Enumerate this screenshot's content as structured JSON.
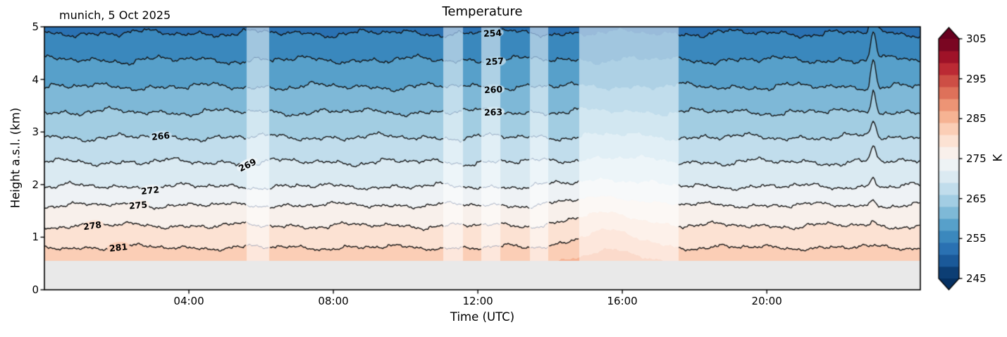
{
  "figure": {
    "title": "Temperature",
    "annotation": "munich, 5 Oct 2025",
    "xlabel": "Time (UTC)",
    "ylabel": "Height a.s.l. (km)"
  },
  "colorbar": {
    "label": "K",
    "ticks": [
      245,
      255,
      265,
      275,
      285,
      295,
      305
    ],
    "vmin": 245,
    "vmax": 305,
    "band_step_K": 3,
    "extend": "both",
    "colormap": "RdBu_r"
  },
  "chart_data": {
    "type": "heatmap",
    "subtype": "filled-contour-time-height-section",
    "title": "Temperature",
    "station_label": "munich, 5 Oct 2025",
    "xlabel": "Time (UTC)",
    "ylabel": "Height a.s.l. (km)",
    "x_range_hours": [
      0,
      24.25
    ],
    "x_ticks": [
      {
        "hour": 4,
        "label": "04:00"
      },
      {
        "hour": 8,
        "label": "08:00"
      },
      {
        "hour": 12,
        "label": "12:00"
      },
      {
        "hour": 16,
        "label": "16:00"
      },
      {
        "hour": 20,
        "label": "20:00"
      }
    ],
    "y_range_km": [
      0,
      5
    ],
    "y_ticks_km": [
      0,
      1,
      2,
      3,
      4,
      5
    ],
    "surface_height_km": 0.55,
    "contour_interval_K": 3,
    "contour_line_levels_K": [
      254,
      257,
      260,
      263,
      266,
      269,
      272,
      275,
      278,
      281
    ],
    "temperature_profile": [
      {
        "z_km": 0.55,
        "T_K": 283.4
      },
      {
        "z_km": 0.8,
        "T_K": 281.0
      },
      {
        "z_km": 1.22,
        "T_K": 278.0
      },
      {
        "z_km": 1.61,
        "T_K": 275.0
      },
      {
        "z_km": 1.96,
        "T_K": 272.0
      },
      {
        "z_km": 2.43,
        "T_K": 269.0
      },
      {
        "z_km": 2.9,
        "T_K": 266.0
      },
      {
        "z_km": 3.38,
        "T_K": 263.0
      },
      {
        "z_km": 3.86,
        "T_K": 260.0
      },
      {
        "z_km": 4.37,
        "T_K": 257.0
      },
      {
        "z_km": 4.88,
        "T_K": 254.0
      },
      {
        "z_km": 5.3,
        "T_K": 251.4
      }
    ],
    "data_gap_intervals_hours": [
      [
        5.6,
        6.22
      ],
      [
        11.05,
        11.58
      ],
      [
        12.1,
        12.62
      ],
      [
        13.45,
        13.95
      ],
      [
        14.8,
        17.55
      ]
    ],
    "afternoon_warm_anomaly": {
      "center_hour": 15.6,
      "sigma_hours": 1.15,
      "amplitude_K": 2.5,
      "z_sigma_km": 1.6
    },
    "late_evening_spike": {
      "center_hour": 22.95,
      "sigma_hours": 0.1,
      "amplitude_K": 3.0
    },
    "contour_labels": [
      {
        "value": 254,
        "hour": 12.4,
        "angle_deg": -3
      },
      {
        "value": 257,
        "hour": 12.47,
        "angle_deg": -4
      },
      {
        "value": 260,
        "hour": 12.43,
        "angle_deg": -3
      },
      {
        "value": 263,
        "hour": 12.43,
        "angle_deg": -2
      },
      {
        "value": 266,
        "hour": 3.22,
        "angle_deg": -6
      },
      {
        "value": 269,
        "hour": 5.62,
        "angle_deg": -26
      },
      {
        "value": 272,
        "hour": 2.93,
        "angle_deg": -6
      },
      {
        "value": 275,
        "hour": 2.6,
        "angle_deg": -5
      },
      {
        "value": 278,
        "hour": 1.33,
        "angle_deg": -8
      },
      {
        "value": 281,
        "hour": 2.05,
        "angle_deg": -6
      }
    ],
    "colors": {
      "colormap": "RdBu_r",
      "anchors": [
        "#053061",
        "#2166ac",
        "#4393c3",
        "#92c5de",
        "#d1e5f0",
        "#f7f7f7",
        "#fddbc7",
        "#f4a582",
        "#d6604d",
        "#b2182b",
        "#67001f"
      ],
      "below_surface_gray": "#e9e9e9",
      "contour_line": "#111111",
      "gap_thin_line": "rgba(60,85,130,0.55)",
      "gap_wash": 0.52
    }
  }
}
